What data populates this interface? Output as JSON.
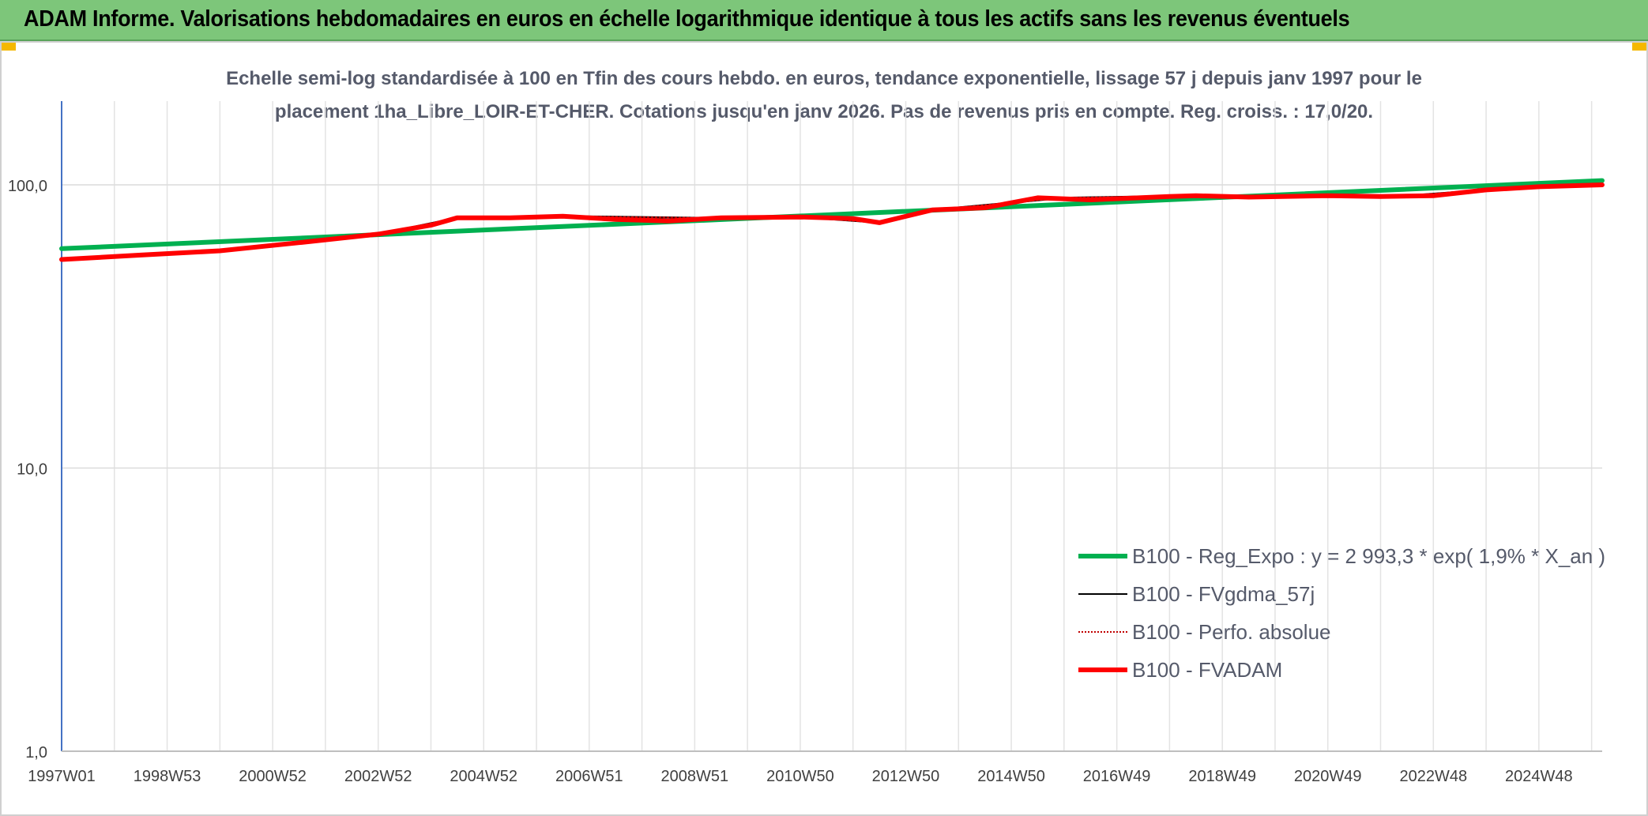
{
  "banner": {
    "title": "ADAM Informe. Valorisations hebdomadaires en euros en échelle logarithmique identique à tous les actifs sans les revenus éventuels",
    "background": "#7dc67a"
  },
  "chart_data": {
    "type": "line",
    "title_line1": "Echelle semi-log standardisée à 100 en Tfin des cours hebdo. en euros, tendance exponentielle, lissage 57 j depuis janv 1997 pour le",
    "title_line2": "placement 1ha_Libre_LOIR-ET-CHER. Cotations jusqu'en janv 2026. Pas de revenus pris en compte. Reg. croiss. : 17,0/20.",
    "xlabel": "",
    "ylabel": "",
    "y_scale": "log",
    "ylim": [
      1,
      200
    ],
    "x_range": [
      1997.0,
      2026.2
    ],
    "y_ticks": [
      {
        "value": 1,
        "label": "1,0"
      },
      {
        "value": 10,
        "label": "10,0"
      },
      {
        "value": 100,
        "label": "100,0"
      }
    ],
    "x_ticks": [
      {
        "value": 1997.0,
        "label": "1997W01"
      },
      {
        "value": 1999.0,
        "label": "1998W53"
      },
      {
        "value": 2001.0,
        "label": "2000W52"
      },
      {
        "value": 2003.0,
        "label": "2002W52"
      },
      {
        "value": 2005.0,
        "label": "2004W52"
      },
      {
        "value": 2007.0,
        "label": "2006W51"
      },
      {
        "value": 2009.0,
        "label": "2008W51"
      },
      {
        "value": 2011.0,
        "label": "2010W50"
      },
      {
        "value": 2013.0,
        "label": "2012W50"
      },
      {
        "value": 2015.0,
        "label": "2014W50"
      },
      {
        "value": 2017.0,
        "label": "2016W49"
      },
      {
        "value": 2019.0,
        "label": "2018W49"
      },
      {
        "value": 2021.0,
        "label": "2020W49"
      },
      {
        "value": 2023.0,
        "label": "2022W48"
      },
      {
        "value": 2025.0,
        "label": "2024W48"
      }
    ],
    "grid": true,
    "legend_position": "bottom-right",
    "series": [
      {
        "name": "B100 - Reg_Expo : y = 2 993,3 * exp( 1,9% *  X_an )",
        "color": "#00b050",
        "style": "solid-thick",
        "x": [
          1997.0,
          2026.2
        ],
        "y": [
          59.5,
          103.5
        ]
      },
      {
        "name": "B100 - FVgdma_57j",
        "color": "#000000",
        "style": "solid-thin",
        "x": [
          1997.0,
          2000.0,
          2003.0,
          2004.5,
          2006.5,
          2009.0,
          2011.0,
          2012.5,
          2013.5,
          2016.0,
          2018.5,
          2020.0,
          2022.5,
          2024.0,
          2026.2
        ],
        "y": [
          54.5,
          58.5,
          67.0,
          76.5,
          77.5,
          76.5,
          77.0,
          73.5,
          81.5,
          90.0,
          91.5,
          91.5,
          91.5,
          96.0,
          100.0
        ]
      },
      {
        "name": "B100 - Perfo. absolue",
        "color": "#c00000",
        "style": "dotted",
        "x": [
          1997.0,
          2000.0,
          2003.0,
          2004.5,
          2006.5,
          2009.0,
          2011.0,
          2012.5,
          2013.5,
          2016.0,
          2018.5,
          2020.0,
          2022.5,
          2024.0,
          2026.2
        ],
        "y": [
          54.5,
          58.5,
          67.0,
          76.5,
          77.5,
          76.5,
          77.0,
          73.5,
          81.5,
          90.0,
          91.5,
          91.5,
          91.5,
          96.0,
          100.0
        ]
      },
      {
        "name": "B100 - FVADAM",
        "color": "#ff0000",
        "style": "solid-thick",
        "x": [
          1997.0,
          1998.5,
          2000.0,
          2001.5,
          2003.0,
          2004.0,
          2004.5,
          2005.5,
          2006.5,
          2007.5,
          2008.5,
          2009.5,
          2011.0,
          2012.0,
          2012.5,
          2013.5,
          2014.5,
          2015.5,
          2016.5,
          2018.0,
          2018.5,
          2019.5,
          2021.0,
          2022.0,
          2023.0,
          2024.0,
          2025.0,
          2026.2
        ],
        "y": [
          54.5,
          56.5,
          58.5,
          62.5,
          67.0,
          72.0,
          76.5,
          76.5,
          77.5,
          75.5,
          74.5,
          76.5,
          77.0,
          76.0,
          73.5,
          81.5,
          83.0,
          90.0,
          88.5,
          91.0,
          91.5,
          90.5,
          91.5,
          91.0,
          91.5,
          96.0,
          98.5,
          100.0
        ]
      }
    ]
  }
}
